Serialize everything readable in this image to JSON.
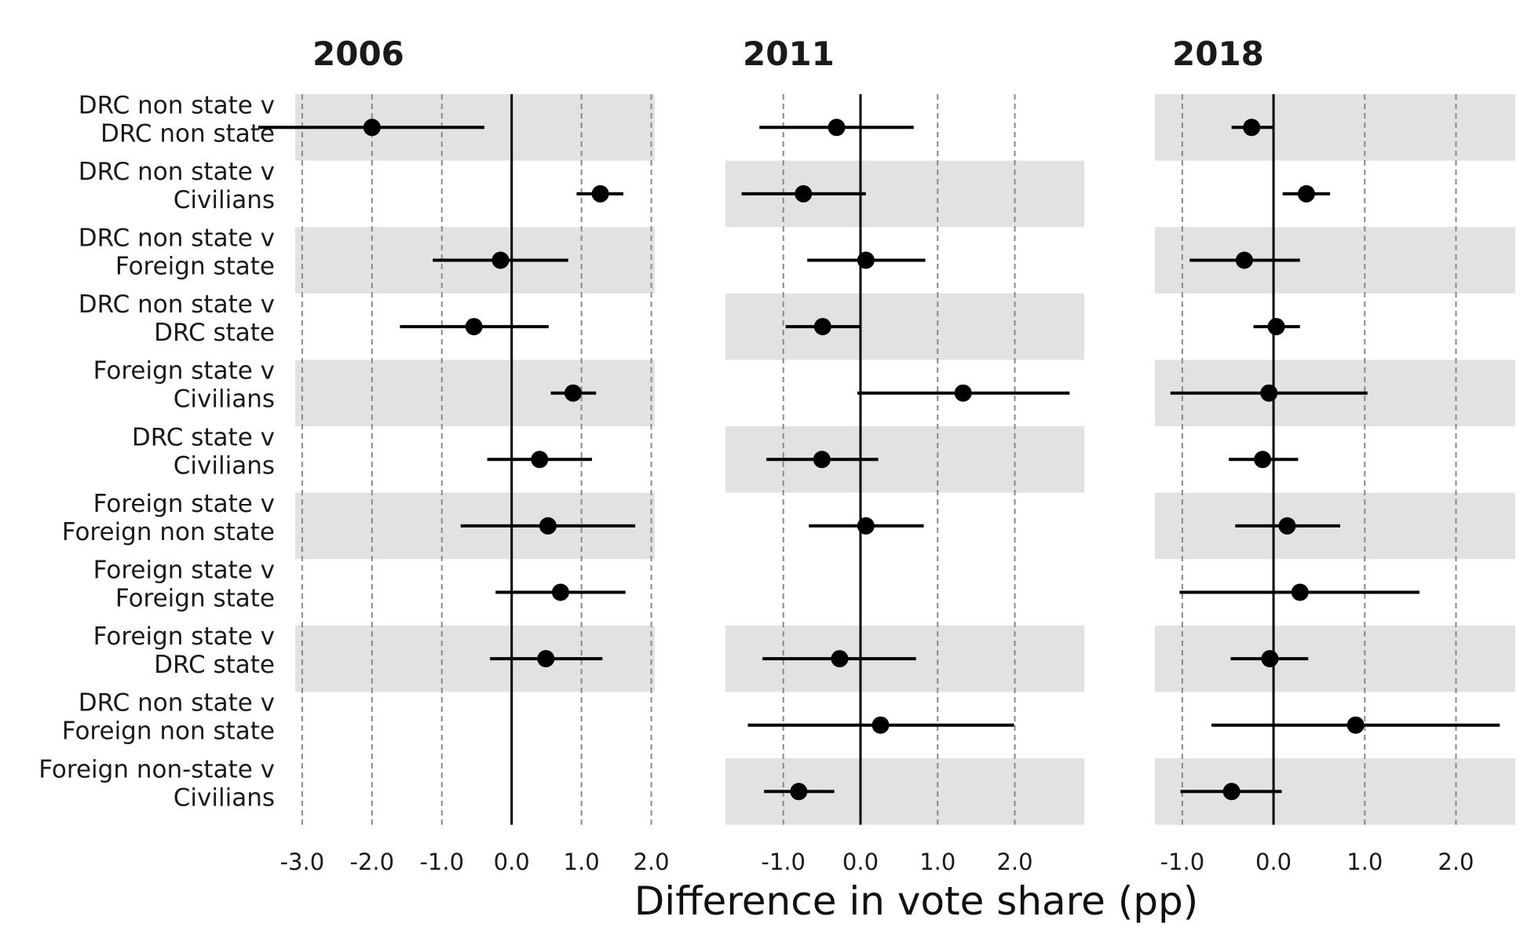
{
  "chart_data": {
    "type": "scatter",
    "subtype": "forest-plot",
    "xlabel": "Difference in vote share (pp)",
    "rows": [
      [
        "DRC non state v",
        "DRC non state"
      ],
      [
        "DRC non state v",
        "Civilians"
      ],
      [
        "DRC non state v",
        "Foreign state"
      ],
      [
        "DRC non state v",
        "DRC state"
      ],
      [
        "Foreign state v",
        "Civilians"
      ],
      [
        "DRC state v",
        "Civilians"
      ],
      [
        "Foreign state v",
        "Foreign non state"
      ],
      [
        "Foreign state v",
        "Foreign state"
      ],
      [
        "Foreign state v",
        "DRC state"
      ],
      [
        "DRC non state v",
        "Foreign non state"
      ],
      [
        "Foreign non-state v",
        "Civilians"
      ]
    ],
    "grid": "vertical dashed",
    "zero_line": true,
    "panels": [
      {
        "title": "2006",
        "xlim": [
          -3.1,
          2.05
        ],
        "ticks": [
          -3,
          -2,
          -1,
          0,
          1,
          2
        ],
        "tick_labels": [
          "-3.0",
          "-2.0",
          "-1.0",
          "0.0",
          "1.0",
          "2.0"
        ],
        "shaded_rows": [
          0,
          2,
          4,
          6,
          8
        ],
        "estimates": [
          -2.0,
          1.27,
          -0.16,
          -0.54,
          0.88,
          0.4,
          0.52,
          0.7,
          0.49,
          null,
          null
        ],
        "lower": [
          -3.63,
          0.93,
          -1.13,
          -1.6,
          0.56,
          -0.35,
          -0.73,
          -0.23,
          -0.31,
          null,
          null
        ],
        "upper": [
          -0.39,
          1.6,
          0.81,
          0.53,
          1.21,
          1.15,
          1.77,
          1.63,
          1.3,
          null,
          null
        ]
      },
      {
        "title": "2011",
        "xlim": [
          -1.75,
          2.9
        ],
        "ticks": [
          -1,
          0,
          1,
          2
        ],
        "tick_labels": [
          "-1.0",
          "0.0",
          "1.0",
          "2.0"
        ],
        "shaded_rows": [
          1,
          3,
          5,
          8,
          10
        ],
        "estimates": [
          -0.31,
          -0.74,
          0.07,
          -0.49,
          1.33,
          -0.5,
          0.07,
          null,
          -0.27,
          0.26,
          -0.8
        ],
        "lower": [
          -1.31,
          -1.54,
          -0.69,
          -0.97,
          -0.04,
          -1.22,
          -0.67,
          null,
          -1.27,
          -1.46,
          -1.25
        ],
        "upper": [
          0.69,
          0.07,
          0.84,
          -0.01,
          2.71,
          0.23,
          0.82,
          null,
          0.72,
          1.99,
          -0.34
        ]
      },
      {
        "title": "2018",
        "xlim": [
          -1.3,
          2.65
        ],
        "ticks": [
          -1,
          0,
          1,
          2
        ],
        "tick_labels": [
          "-1.0",
          "0.0",
          "1.0",
          "2.0"
        ],
        "shaded_rows": [
          0,
          2,
          4,
          6,
          8,
          10
        ],
        "estimates": [
          -0.24,
          0.36,
          -0.32,
          0.03,
          -0.05,
          -0.12,
          0.15,
          0.29,
          -0.04,
          0.9,
          -0.46
        ],
        "lower": [
          -0.46,
          0.1,
          -0.92,
          -0.22,
          -1.13,
          -0.49,
          -0.42,
          -1.03,
          -0.47,
          -0.68,
          -1.02
        ],
        "upper": [
          0.0,
          0.62,
          0.29,
          0.29,
          1.03,
          0.27,
          0.73,
          1.6,
          0.38,
          2.48,
          0.09
        ]
      }
    ]
  }
}
